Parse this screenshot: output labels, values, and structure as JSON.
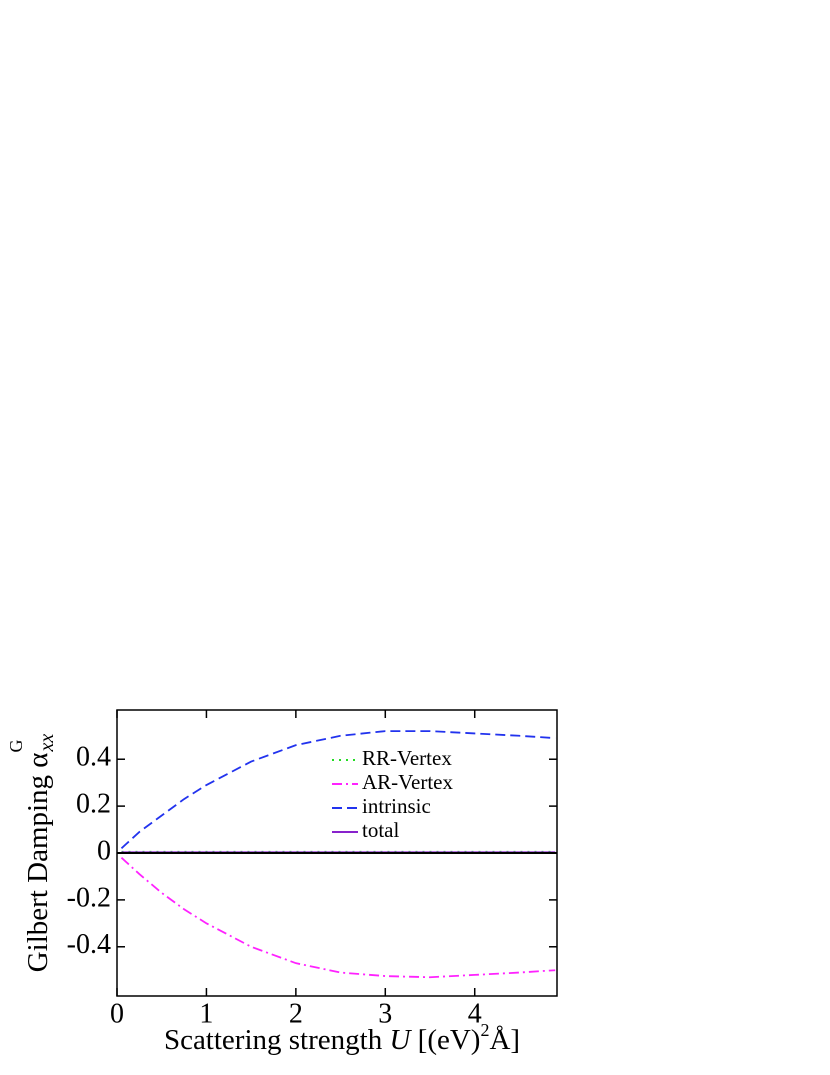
{
  "chart_data": {
    "type": "line",
    "xlabel": [
      "Scattering strength ",
      "U",
      " [(eV)",
      "2",
      "Å]"
    ],
    "ylabel": [
      "Gilbert Damping α",
      "G",
      "xx"
    ],
    "x": [
      0.05,
      0.25,
      0.5,
      0.75,
      1,
      1.5,
      2,
      2.5,
      3,
      3.5,
      4,
      4.5,
      4.9
    ],
    "series": [
      {
        "name": "RR-Vertex",
        "color": "#22dd22",
        "dash": "dotted",
        "values": [
          0.005,
          0.005,
          0.005,
          0.005,
          0.005,
          0.005,
          0.005,
          0.005,
          0.005,
          0.005,
          0.005,
          0.005,
          0.005
        ]
      },
      {
        "name": "AR-Vertex",
        "color": "#ff22ff",
        "dash": "dashdot",
        "values": [
          -0.02,
          -0.09,
          -0.17,
          -0.24,
          -0.3,
          -0.4,
          -0.47,
          -0.51,
          -0.525,
          -0.53,
          -0.52,
          -0.51,
          -0.5
        ]
      },
      {
        "name": "intrinsic",
        "color": "#2233ee",
        "dash": "dashed",
        "values": [
          0.02,
          0.09,
          0.16,
          0.23,
          0.29,
          0.39,
          0.46,
          0.5,
          0.52,
          0.52,
          0.51,
          0.5,
          0.49
        ]
      },
      {
        "name": "total",
        "color": "#8822cc",
        "dash": "solid",
        "values": [
          0.003,
          0.003,
          0.003,
          0.003,
          0.003,
          0.003,
          0.003,
          0.003,
          0.003,
          0.003,
          0.003,
          0.003,
          0.003
        ]
      }
    ],
    "xlim": [
      0,
      4.92
    ],
    "xticks": [
      0,
      1,
      2,
      3,
      4
    ],
    "ylim": [
      -0.61,
      0.61
    ],
    "yticks": [
      -0.4,
      -0.2,
      0,
      0.2,
      0.4
    ]
  }
}
